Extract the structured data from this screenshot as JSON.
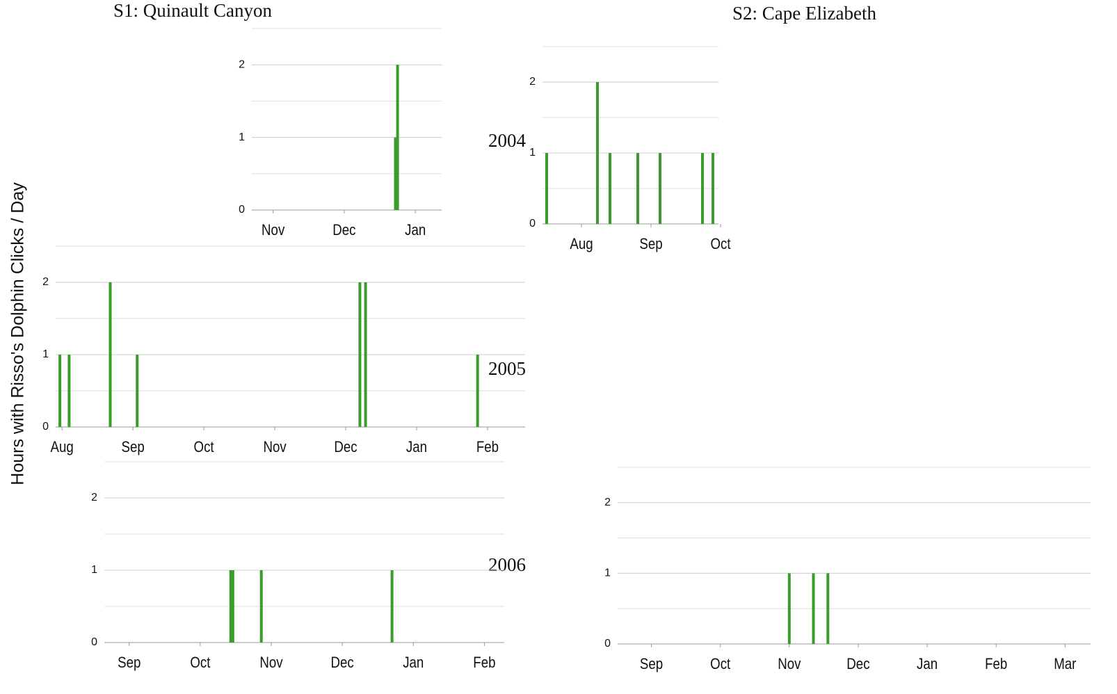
{
  "labels": {
    "columns": [
      "S1: Quinault Canyon",
      "S2: Cape Elizabeth"
    ],
    "rows": [
      "2004",
      "2005",
      "2006"
    ],
    "ylabel": "Hours with Risso's Dolphin Clicks / Day"
  },
  "chart_data": [
    {
      "type": "bar",
      "color": "#3a9c2a",
      "grid": true,
      "x": [
        1.72,
        1.75
      ],
      "values": [
        1,
        2
      ],
      "xlim": [
        -0.3,
        2.37
      ],
      "xticks": [
        {
          "value": 0,
          "label": "Nov"
        },
        {
          "value": 1,
          "label": "Dec"
        },
        {
          "value": 2,
          "label": "Jan"
        }
      ],
      "ylim": [
        0,
        2.5
      ],
      "yticks": [
        0,
        1,
        2
      ],
      "yminor": [
        0.5,
        1.5,
        2.5
      ]
    },
    {
      "type": "bar",
      "color": "#3a9c2a",
      "grid": true,
      "x": [
        -0.5,
        0.23,
        0.41,
        0.81,
        1.13,
        1.74,
        1.89
      ],
      "values": [
        1,
        2,
        1,
        1,
        1,
        1,
        1
      ],
      "xlim": [
        -0.56,
        1.97
      ],
      "xticks": [
        {
          "value": 0,
          "label": "Aug"
        },
        {
          "value": 1,
          "label": "Sep"
        },
        {
          "value": 2,
          "label": "Oct"
        }
      ],
      "ylim": [
        0,
        2.5
      ],
      "yticks": [
        0,
        1,
        2
      ],
      "yminor": [
        0.5,
        1.5,
        2.5
      ]
    },
    {
      "type": "bar",
      "color": "#3a9c2a",
      "grid": true,
      "x": [
        -0.03,
        0.1,
        0.68,
        1.06,
        4.2,
        4.28,
        5.86
      ],
      "values": [
        1,
        1,
        2,
        1,
        2,
        2,
        1
      ],
      "xlim": [
        -0.09,
        6.53
      ],
      "xticks": [
        {
          "value": 0,
          "label": "Aug"
        },
        {
          "value": 1,
          "label": "Sep"
        },
        {
          "value": 2,
          "label": "Oct"
        },
        {
          "value": 3,
          "label": "Nov"
        },
        {
          "value": 4,
          "label": "Dec"
        },
        {
          "value": 5,
          "label": "Jan"
        },
        {
          "value": 6,
          "label": "Feb"
        }
      ],
      "ylim": [
        0,
        2.5
      ],
      "yticks": [
        0,
        1,
        2
      ],
      "yminor": [
        0.5,
        1.5,
        2.5
      ]
    },
    {
      "type": "bar",
      "color": "#3a9c2a",
      "grid": true,
      "x": [
        1.43,
        1.46,
        1.86,
        3.7
      ],
      "values": [
        1,
        1,
        1,
        1
      ],
      "xlim": [
        -0.35,
        5.28
      ],
      "xticks": [
        {
          "value": 0,
          "label": "Sep"
        },
        {
          "value": 1,
          "label": "Oct"
        },
        {
          "value": 2,
          "label": "Nov"
        },
        {
          "value": 3,
          "label": "Dec"
        },
        {
          "value": 4,
          "label": "Jan"
        },
        {
          "value": 5,
          "label": "Feb"
        }
      ],
      "ylim": [
        0,
        2.5
      ],
      "yticks": [
        0,
        1,
        2
      ],
      "yminor": [
        0.5,
        1.5,
        2.5
      ]
    },
    {
      "type": "bar",
      "color": "#3a9c2a",
      "grid": true,
      "x": [
        2.0,
        2.35,
        2.56
      ],
      "values": [
        1,
        1,
        1
      ],
      "xlim": [
        -0.49,
        6.37
      ],
      "xticks": [
        {
          "value": 0,
          "label": "Sep"
        },
        {
          "value": 1,
          "label": "Oct"
        },
        {
          "value": 2,
          "label": "Nov"
        },
        {
          "value": 3,
          "label": "Dec"
        },
        {
          "value": 4,
          "label": "Jan"
        },
        {
          "value": 5,
          "label": "Feb"
        },
        {
          "value": 6,
          "label": "Mar"
        }
      ],
      "ylim": [
        0,
        2.5
      ],
      "yticks": [
        0,
        1,
        2
      ],
      "yminor": [
        0.5,
        1.5,
        2.5
      ]
    }
  ]
}
